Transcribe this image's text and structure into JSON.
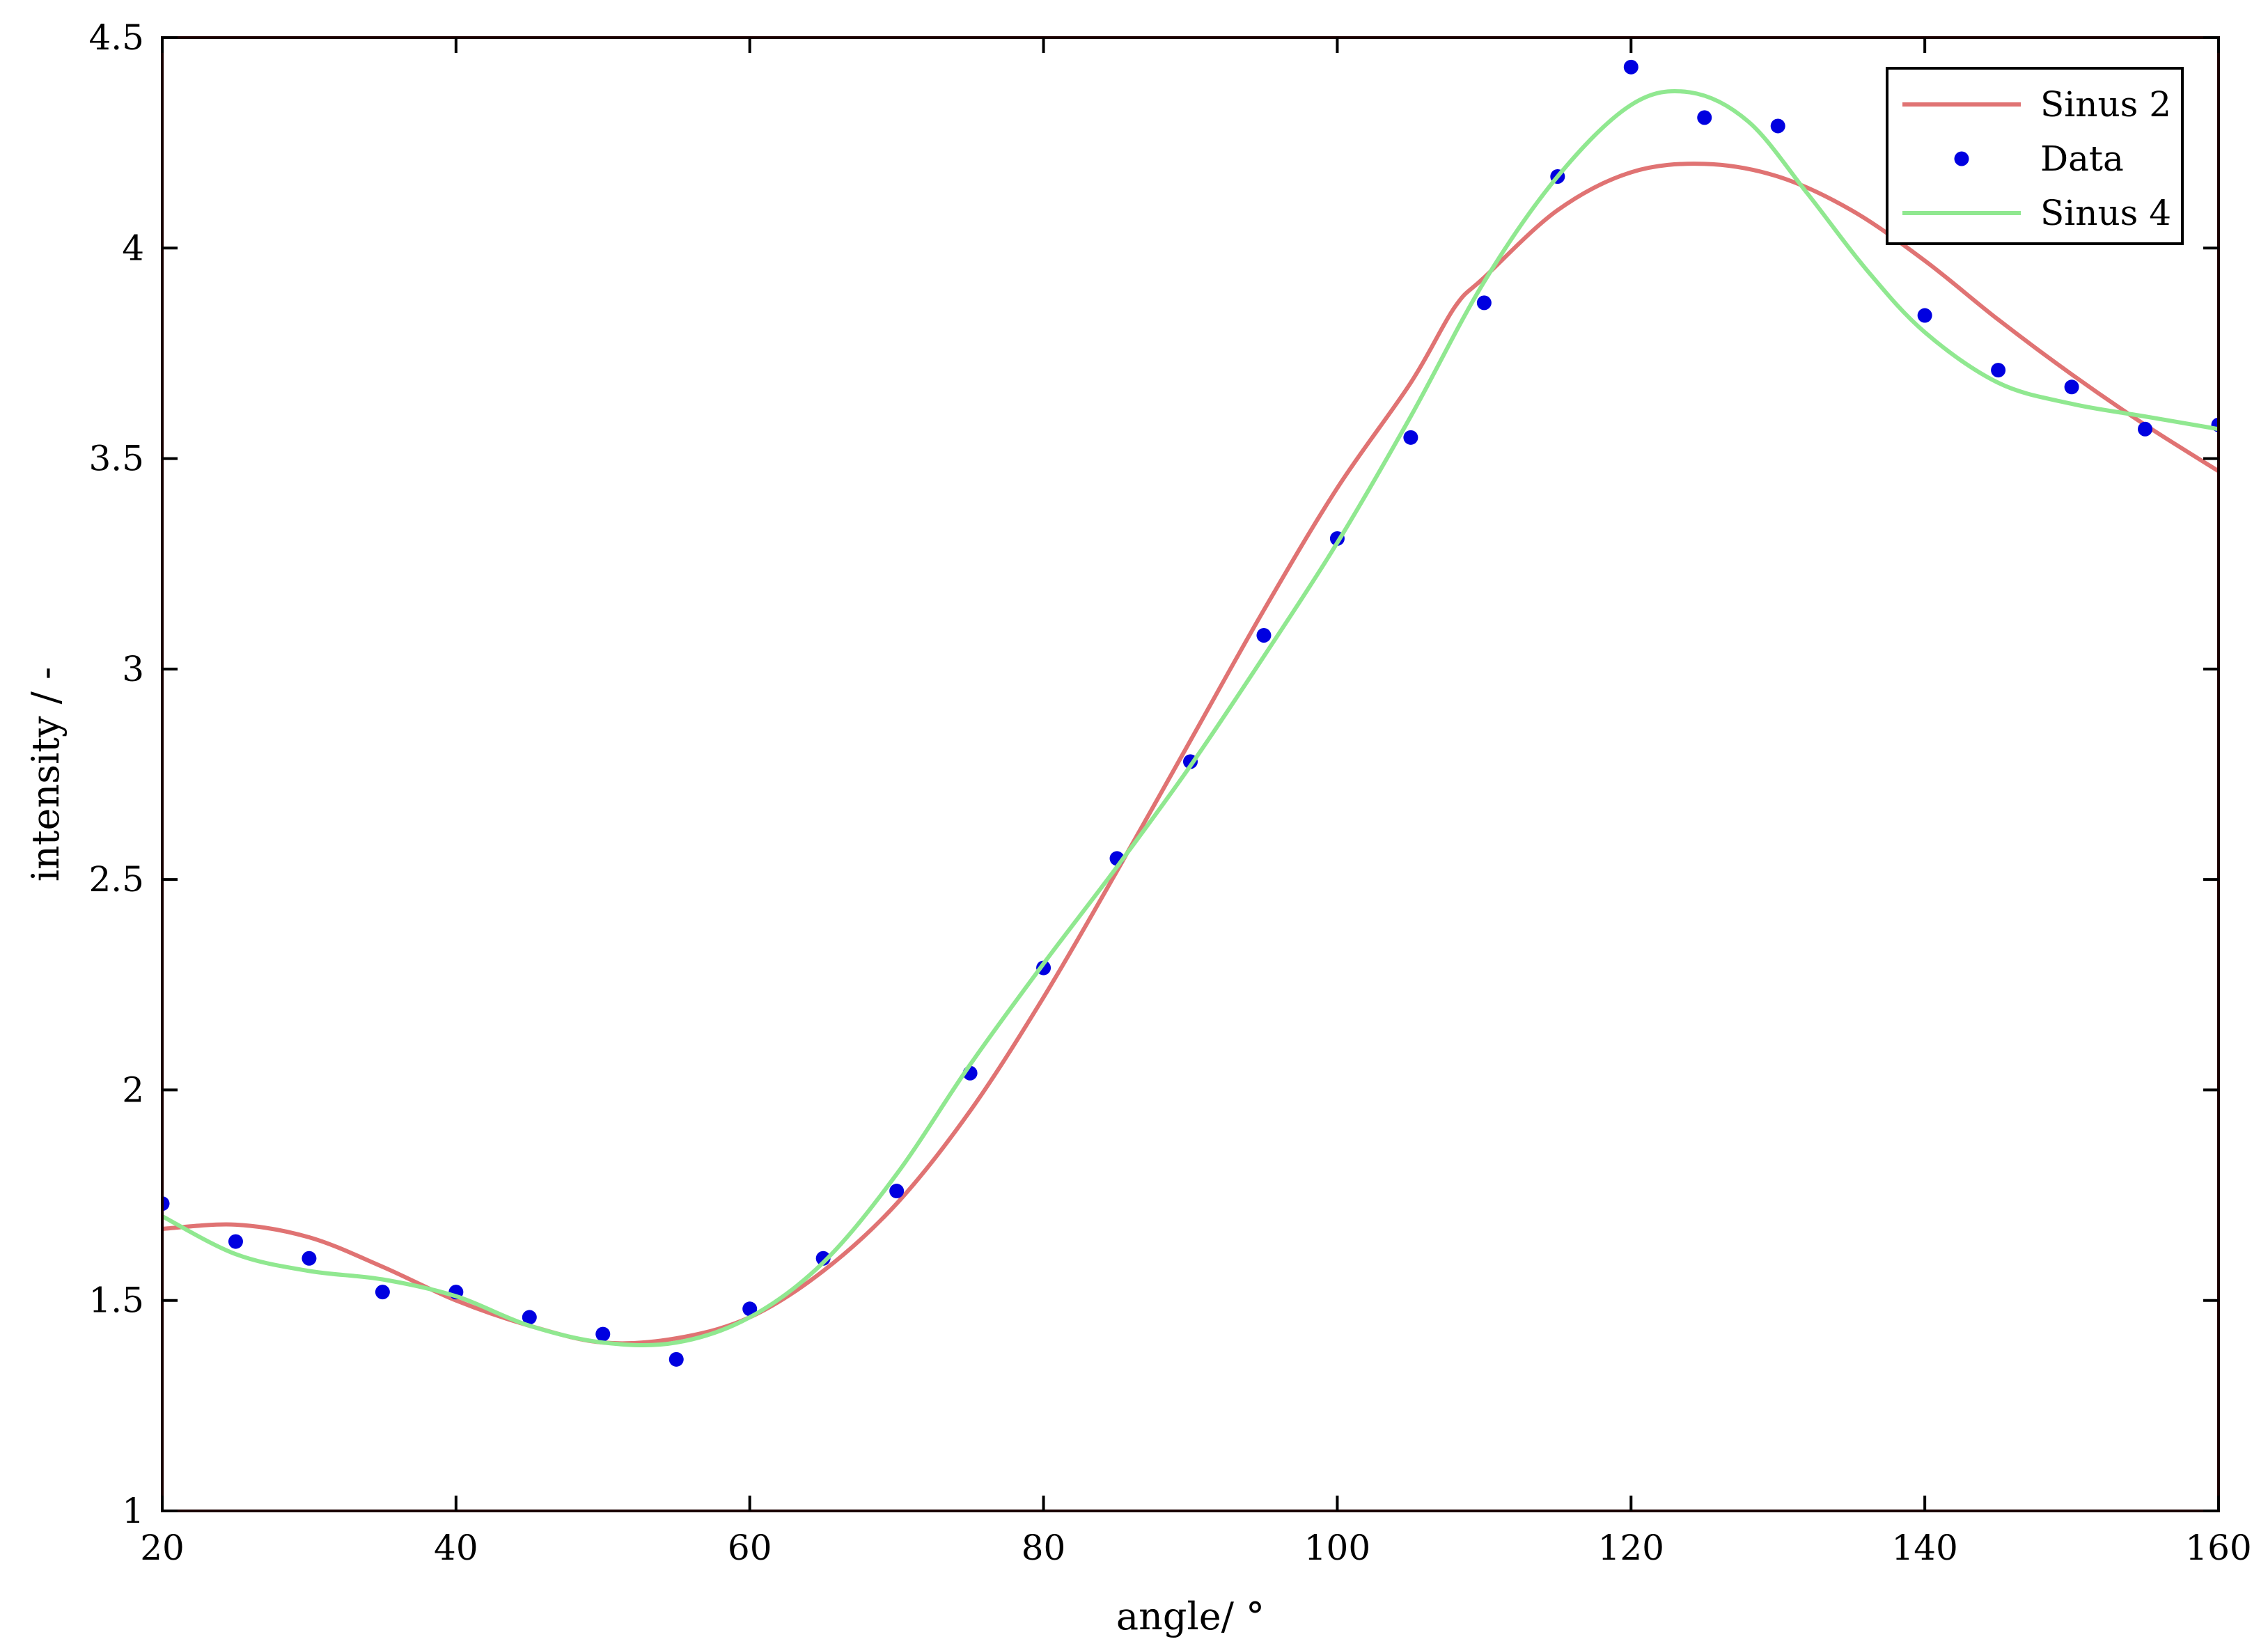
{
  "chart_data": {
    "type": "line",
    "title": "",
    "xlabel": "angle/ °",
    "ylabel": "intensity / -",
    "xlim": [
      20,
      160
    ],
    "ylim": [
      1,
      4.5
    ],
    "xticks": [
      20,
      40,
      60,
      80,
      100,
      120,
      140,
      160
    ],
    "yticks": [
      1,
      1.5,
      2,
      2.5,
      3,
      3.5,
      4,
      4.5
    ],
    "xtick_labels": [
      "20",
      "40",
      "60",
      "80",
      "100",
      "120",
      "140",
      "160"
    ],
    "ytick_labels": [
      "1",
      "1.5",
      "2",
      "2.5",
      "3",
      "3.5",
      "4",
      "4.5"
    ],
    "grid": false,
    "legend_position": "top-right",
    "series": [
      {
        "name": "Sinus 2",
        "style": "line",
        "color": "#E07373",
        "x": [
          20,
          25,
          30,
          35,
          40,
          45,
          50,
          55,
          60,
          65,
          70,
          75,
          80,
          85,
          90,
          95,
          100,
          105,
          108,
          110,
          115,
          120,
          125,
          130,
          135,
          140,
          145,
          150,
          155,
          160
        ],
        "y": [
          1.67,
          1.68,
          1.65,
          1.58,
          1.5,
          1.44,
          1.4,
          1.41,
          1.46,
          1.57,
          1.73,
          1.95,
          2.22,
          2.52,
          2.83,
          3.14,
          3.43,
          3.68,
          3.86,
          3.93,
          4.09,
          4.18,
          4.2,
          4.17,
          4.09,
          3.97,
          3.83,
          3.7,
          3.58,
          3.47
        ]
      },
      {
        "name": "Data",
        "style": "markers",
        "color": "#0000E0",
        "x": [
          20,
          25,
          30,
          35,
          40,
          45,
          50,
          55,
          60,
          65,
          70,
          75,
          80,
          85,
          90,
          95,
          100,
          105,
          110,
          115,
          120,
          125,
          130,
          140,
          145,
          150,
          155,
          160
        ],
        "y": [
          1.73,
          1.64,
          1.6,
          1.52,
          1.52,
          1.46,
          1.42,
          1.36,
          1.48,
          1.6,
          1.76,
          2.04,
          2.29,
          2.55,
          2.78,
          3.08,
          3.31,
          3.55,
          3.87,
          4.17,
          4.43,
          4.31,
          4.29,
          3.84,
          3.71,
          3.67,
          3.57,
          3.58
        ]
      },
      {
        "name": "Sinus 4",
        "style": "line",
        "color": "#90E890",
        "x": [
          20,
          25,
          30,
          35,
          40,
          45,
          50,
          55,
          60,
          65,
          70,
          75,
          80,
          85,
          90,
          95,
          100,
          105,
          110,
          115,
          120,
          124,
          128,
          132,
          136,
          140,
          145,
          150,
          155,
          160
        ],
        "y": [
          1.7,
          1.61,
          1.57,
          1.55,
          1.51,
          1.44,
          1.4,
          1.4,
          1.46,
          1.59,
          1.8,
          2.06,
          2.3,
          2.53,
          2.77,
          3.03,
          3.3,
          3.6,
          3.92,
          4.17,
          4.34,
          4.37,
          4.3,
          4.13,
          3.95,
          3.8,
          3.68,
          3.63,
          3.6,
          3.57
        ]
      }
    ]
  }
}
